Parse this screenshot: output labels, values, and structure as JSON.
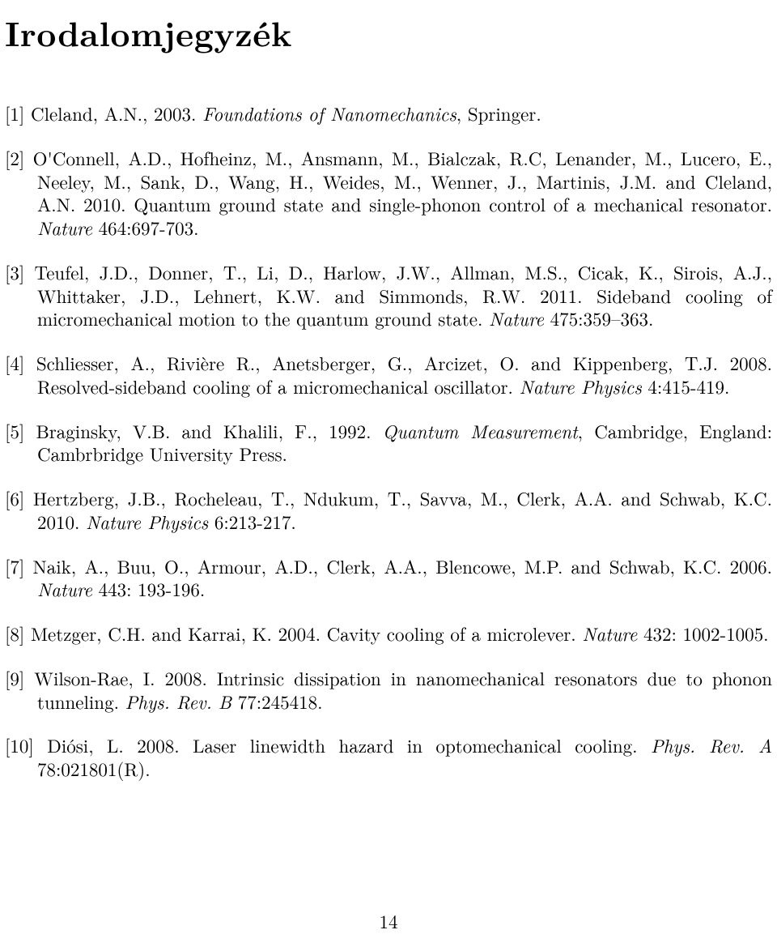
{
  "title": "Irodalomjegyzék",
  "page_number": "14",
  "fonts": {
    "body_family": "CMU Serif, Latin Modern Roman, Times New Roman, serif",
    "title_size_pt": 42,
    "body_size_pt": 23,
    "line_height": 1.25
  },
  "colors": {
    "text": "#000000",
    "background": "#ffffff"
  },
  "references": [
    {
      "num": "[1]",
      "pre": "Cleland, A.N., 2003. ",
      "ital1": "Foundations of Nanomechanics",
      "mid1": ", Springer."
    },
    {
      "num": "[2]",
      "pre": "O'Connell, A.D., Hofheinz, M., Ansmann, M., Bialczak, R.C, Lenander, M., Lucero, E., Neeley, M., Sank, D., Wang, H., Weides, M., Wenner, J., Martinis, J.M. and Cleland, A.N. 2010. Quantum ground state and single-phonon control of a mechanical resonator. ",
      "ital1": "Nature",
      "mid1": " 464:697-703."
    },
    {
      "num": "[3]",
      "pre": "Teufel, J.D., Donner, T., Li, D., Harlow, J.W., Allman, M.S., Cicak, K., Sirois, A.J., Whittaker, J.D., Lehnert, K.W. and Simmonds, R.W. 2011. Sideband cooling of micromechanical motion to the quantum ground state. ",
      "ital1": "Nature",
      "mid1": " 475:359–363."
    },
    {
      "num": "[4]",
      "pre": "Schliesser, A., Rivière R., Anetsberger, G., Arcizet, O. and Kippenberg, T.J. 2008. Resolved-sideband cooling of a micromechanical oscillator. ",
      "ital1": "Nature Physics",
      "mid1": " 4:415-419."
    },
    {
      "num": "[5]",
      "pre": "Braginsky, V.B. and Khalili, F., 1992. ",
      "ital1": "Quantum Measurement",
      "mid1": ", Cambridge, England: Cambrbridge University Press."
    },
    {
      "num": "[6]",
      "pre": "Hertzberg, J.B., Rocheleau, T., Ndukum, T., Savva, M., Clerk, A.A. and Schwab, K.C. 2010. ",
      "ital1": "Nature Physics",
      "mid1": " 6:213-217."
    },
    {
      "num": "[7]",
      "pre": "Naik, A., Buu, O., Armour, A.D., Clerk, A.A., Blencowe, M.P. and Schwab, K.C. 2006. ",
      "ital1": "Nature",
      "mid1": " 443: 193-196."
    },
    {
      "num": "[8]",
      "pre": "Metzger, C.H. and Karrai, K. 2004. Cavity cooling of a microlever. ",
      "ital1": "Nature",
      "mid1": " 432: 1002-1005."
    },
    {
      "num": "[9]",
      "pre": "Wilson-Rae, I. 2008. Intrinsic dissipation in nanomechanical resonators due to phonon tunneling. ",
      "ital1": "Phys. Rev. B",
      "mid1": " 77:245418."
    },
    {
      "num": "[10]",
      "pre": "Diósi, L. 2008. Laser linewidth hazard in optomechanical cooling. ",
      "ital1": "Phys. Rev. A",
      "mid1": " 78:021801(R)."
    }
  ]
}
